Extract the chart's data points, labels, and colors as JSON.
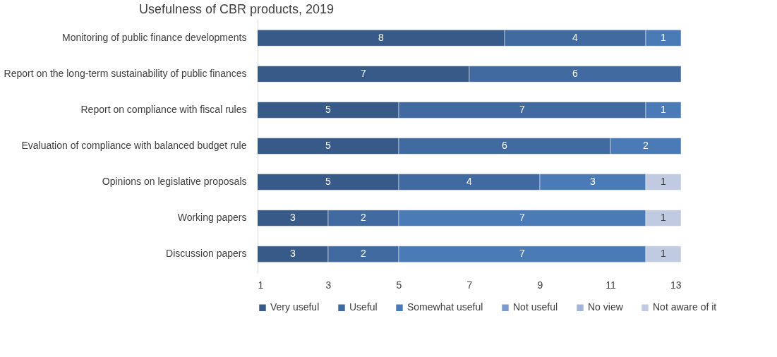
{
  "chart_data": {
    "type": "bar",
    "orientation": "horizontal",
    "stacked": true,
    "title": "Usefulness of CBR products, 2019",
    "categories": [
      "Monitoring of public finance developments",
      "Report on the long-term sustainability of public finances",
      "Report on compliance with fiscal rules",
      "Evaluation of compliance with balanced budget rule",
      "Opinions on legislative proposals",
      "Working papers",
      "Discussion papers"
    ],
    "series": [
      {
        "name": "Very useful",
        "color": "#375a88",
        "values": [
          8,
          7,
          5,
          5,
          5,
          3,
          3
        ]
      },
      {
        "name": "Useful",
        "color": "#406aa0",
        "values": [
          4,
          6,
          7,
          6,
          4,
          2,
          2
        ]
      },
      {
        "name": "Somewhat useful",
        "color": "#4a7bb7",
        "values": [
          1,
          null,
          1,
          2,
          3,
          7,
          7
        ]
      },
      {
        "name": "Not useful",
        "color": "#7b9bcf",
        "values": [
          null,
          null,
          null,
          null,
          null,
          null,
          null
        ]
      },
      {
        "name": "No view",
        "color": "#a3b5d9",
        "values": [
          null,
          null,
          null,
          null,
          null,
          null,
          null
        ]
      },
      {
        "name": "Not aware of it",
        "color": "#c0cbe2",
        "values": [
          null,
          null,
          null,
          null,
          1,
          1,
          1
        ]
      }
    ],
    "xlim": [
      1,
      13
    ],
    "xticks": [
      1,
      3,
      5,
      7,
      9,
      11,
      13
    ],
    "data_labels": true,
    "grid": false,
    "legend": "bottom"
  }
}
